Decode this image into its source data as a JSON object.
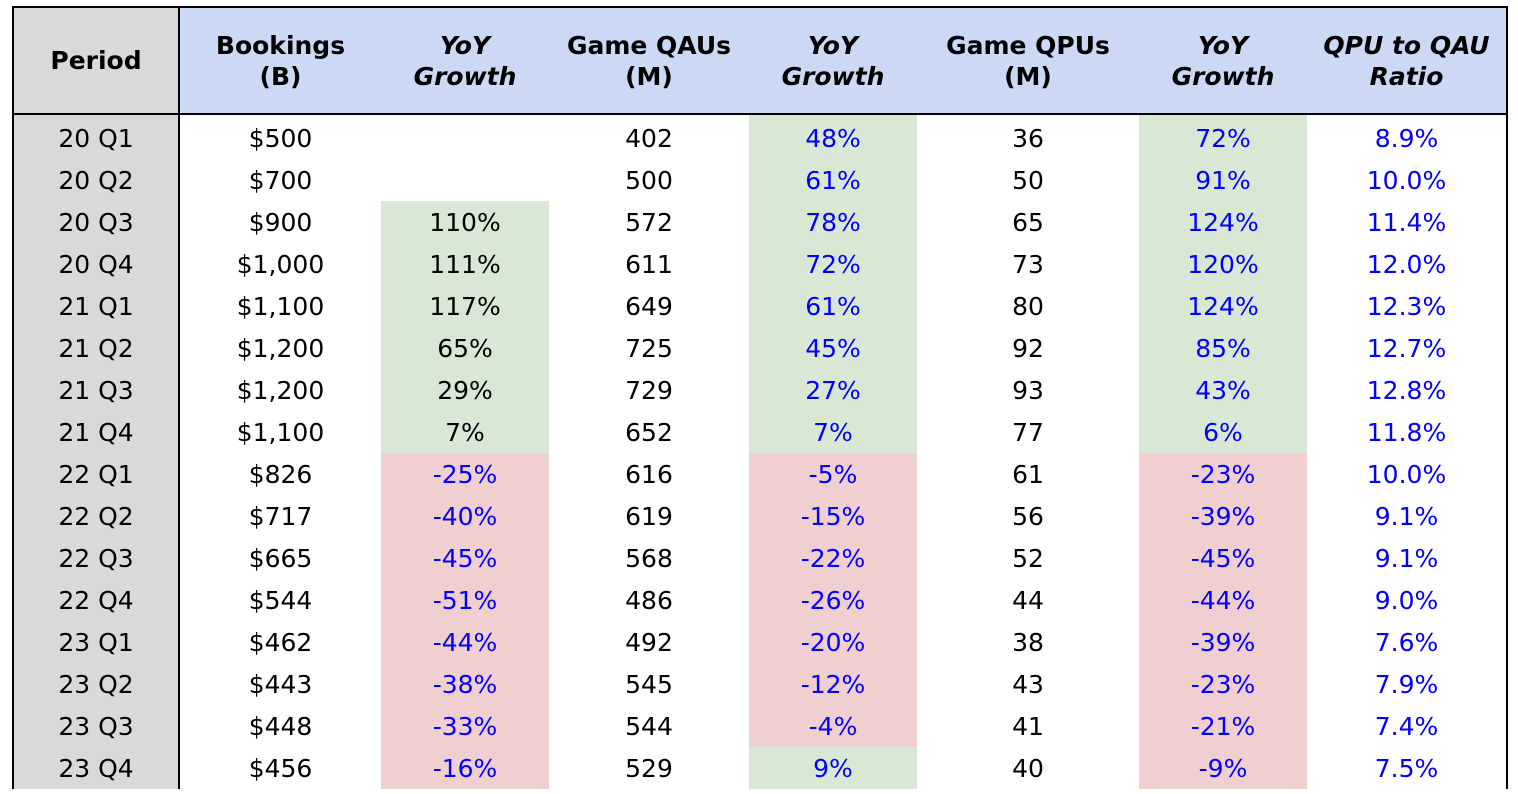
{
  "table": {
    "headers": [
      {
        "line1": "Period",
        "line2": ""
      },
      {
        "line1": "Bookings",
        "line2": "(B)"
      },
      {
        "line1": "YoY",
        "line2": "Growth"
      },
      {
        "line1": "Game QAUs",
        "line2": "(M)"
      },
      {
        "line1": "YoY",
        "line2": "Growth"
      },
      {
        "line1": "Game QPUs",
        "line2": "(M)"
      },
      {
        "line1": "YoY",
        "line2": "Growth"
      },
      {
        "line1": "QPU to QAU",
        "line2": "Ratio"
      }
    ],
    "colors": {
      "header_bg": "#cbd9f5",
      "period_bg": "#d9d9d9",
      "positive_bg": "#d9e8d4",
      "negative_bg": "#efcfcf",
      "blue_text": "#0000ff"
    },
    "rows": [
      {
        "period": "20 Q1",
        "bookings": "$500",
        "bookings_yoy": "",
        "qau": "402",
        "qau_yoy": "48%",
        "qpu": "36",
        "qpu_yoy": "72%",
        "ratio": "8.9%"
      },
      {
        "period": "20 Q2",
        "bookings": "$700",
        "bookings_yoy": "",
        "qau": "500",
        "qau_yoy": "61%",
        "qpu": "50",
        "qpu_yoy": "91%",
        "ratio": "10.0%"
      },
      {
        "period": "20 Q3",
        "bookings": "$900",
        "bookings_yoy": "110%",
        "qau": "572",
        "qau_yoy": "78%",
        "qpu": "65",
        "qpu_yoy": "124%",
        "ratio": "11.4%"
      },
      {
        "period": "20 Q4",
        "bookings": "$1,000",
        "bookings_yoy": "111%",
        "qau": "611",
        "qau_yoy": "72%",
        "qpu": "73",
        "qpu_yoy": "120%",
        "ratio": "12.0%"
      },
      {
        "period": "21 Q1",
        "bookings": "$1,100",
        "bookings_yoy": "117%",
        "qau": "649",
        "qau_yoy": "61%",
        "qpu": "80",
        "qpu_yoy": "124%",
        "ratio": "12.3%"
      },
      {
        "period": "21 Q2",
        "bookings": "$1,200",
        "bookings_yoy": "65%",
        "qau": "725",
        "qau_yoy": "45%",
        "qpu": "92",
        "qpu_yoy": "85%",
        "ratio": "12.7%"
      },
      {
        "period": "21 Q3",
        "bookings": "$1,200",
        "bookings_yoy": "29%",
        "qau": "729",
        "qau_yoy": "27%",
        "qpu": "93",
        "qpu_yoy": "43%",
        "ratio": "12.8%"
      },
      {
        "period": "21 Q4",
        "bookings": "$1,100",
        "bookings_yoy": "7%",
        "qau": "652",
        "qau_yoy": "7%",
        "qpu": "77",
        "qpu_yoy": "6%",
        "ratio": "11.8%"
      },
      {
        "period": "22 Q1",
        "bookings": "$826",
        "bookings_yoy": "-25%",
        "qau": "616",
        "qau_yoy": "-5%",
        "qpu": "61",
        "qpu_yoy": "-23%",
        "ratio": "10.0%"
      },
      {
        "period": "22 Q2",
        "bookings": "$717",
        "bookings_yoy": "-40%",
        "qau": "619",
        "qau_yoy": "-15%",
        "qpu": "56",
        "qpu_yoy": "-39%",
        "ratio": "9.1%"
      },
      {
        "period": "22 Q3",
        "bookings": "$665",
        "bookings_yoy": "-45%",
        "qau": "568",
        "qau_yoy": "-22%",
        "qpu": "52",
        "qpu_yoy": "-45%",
        "ratio": "9.1%"
      },
      {
        "period": "22 Q4",
        "bookings": "$544",
        "bookings_yoy": "-51%",
        "qau": "486",
        "qau_yoy": "-26%",
        "qpu": "44",
        "qpu_yoy": "-44%",
        "ratio": "9.0%"
      },
      {
        "period": "23 Q1",
        "bookings": "$462",
        "bookings_yoy": "-44%",
        "qau": "492",
        "qau_yoy": "-20%",
        "qpu": "38",
        "qpu_yoy": "-39%",
        "ratio": "7.6%"
      },
      {
        "period": "23 Q2",
        "bookings": "$443",
        "bookings_yoy": "-38%",
        "qau": "545",
        "qau_yoy": "-12%",
        "qpu": "43",
        "qpu_yoy": "-23%",
        "ratio": "7.9%"
      },
      {
        "period": "23 Q3",
        "bookings": "$448",
        "bookings_yoy": "-33%",
        "qau": "544",
        "qau_yoy": "-4%",
        "qpu": "41",
        "qpu_yoy": "-21%",
        "ratio": "7.4%"
      },
      {
        "period": "23 Q4",
        "bookings": "$456",
        "bookings_yoy": "-16%",
        "qau": "529",
        "qau_yoy": "9%",
        "qpu": "40",
        "qpu_yoy": "-9%",
        "ratio": "7.5%"
      }
    ]
  }
}
